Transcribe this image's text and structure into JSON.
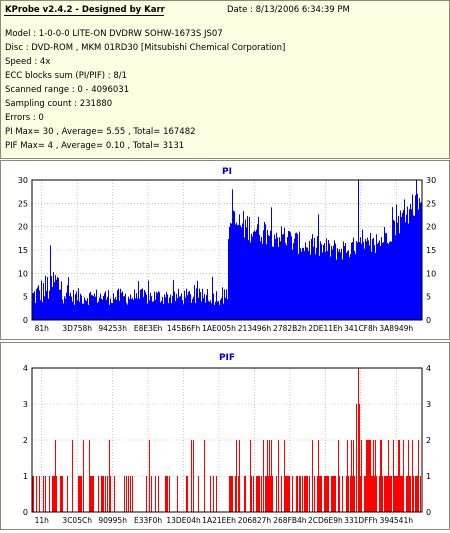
{
  "info": {
    "app_title": "KProbe v2.4.2 - Designed by Karr",
    "date_label": "Date : 8/13/2006 6:34:39 PM",
    "lines": [
      "Model : 1-0-0-0 LITE-ON DVDRW SOHW-1673S JS07",
      "Disc : DVD-ROM , MKM 01RD30   [Mitsubishi Chemical Corporation]",
      "Speed : 4x",
      "ECC blocks sum (PI/PIF) : 8/1",
      "Scanned range : 0 - 4096031",
      "Sampling count : 231880",
      "Errors : 0",
      "PI Max= 30 , Average= 5.55 , Total= 167482",
      "PIF Max= 4 , Average= 0.10 , Total= 3131"
    ]
  },
  "chart_data": [
    {
      "type": "bar",
      "title": "PI",
      "color": "#0000ff",
      "title_color": "#0000cc",
      "ylim": [
        0,
        30
      ],
      "yticks": [
        0,
        5,
        10,
        15,
        20,
        25,
        30
      ],
      "xlim": [
        0,
        1
      ],
      "xticks": [
        "81h",
        "3D758h",
        "94253h",
        "E8E3Eh",
        "145B6Fh",
        "1AE005h",
        "213496h",
        "2782B2h",
        "2DE11Eh",
        "341CF8h",
        "3A8949h"
      ],
      "grid": true,
      "profile": [
        {
          "x": 0.0,
          "base": 5,
          "amp": 4
        },
        {
          "x": 0.04,
          "base": 7,
          "amp": 6
        },
        {
          "x": 0.06,
          "base": 8,
          "amp": 7
        },
        {
          "x": 0.1,
          "base": 5,
          "amp": 3
        },
        {
          "x": 0.5,
          "base": 5,
          "amp": 3
        },
        {
          "x": 0.503,
          "base": 21,
          "amp": 6
        },
        {
          "x": 0.6,
          "base": 19,
          "amp": 5
        },
        {
          "x": 0.7,
          "base": 16,
          "amp": 4
        },
        {
          "x": 0.78,
          "base": 15,
          "amp": 4
        },
        {
          "x": 0.88,
          "base": 16,
          "amp": 4
        },
        {
          "x": 0.95,
          "base": 22,
          "amp": 5
        },
        {
          "x": 1.0,
          "base": 26,
          "amp": 4
        }
      ],
      "peaks": [
        {
          "x": 0.045,
          "v": 16
        },
        {
          "x": 0.514,
          "v": 28
        },
        {
          "x": 0.836,
          "v": 30
        },
        {
          "x": 0.985,
          "v": 30
        }
      ]
    },
    {
      "type": "bar",
      "title": "PIF",
      "color": "#ff0000",
      "title_color": "#0000cc",
      "ylim": [
        0,
        4
      ],
      "yticks": [
        0,
        1,
        2,
        3,
        4
      ],
      "xlim": [
        0,
        1
      ],
      "xticks": [
        "11h",
        "3C05Ch",
        "90995h",
        "E33F0h",
        "13DE04h",
        "1A21EEh",
        "206827h",
        "268FB4h",
        "2CD6E9h",
        "331DFFh",
        "394541h"
      ],
      "grid": true,
      "density": [
        {
          "x": 0.0,
          "p1": 0.35,
          "p2": 0.04
        },
        {
          "x": 0.3,
          "p1": 0.3,
          "p2": 0.03
        },
        {
          "x": 0.5,
          "p1": 0.3,
          "p2": 0.04
        },
        {
          "x": 0.52,
          "p1": 0.5,
          "p2": 0.08
        },
        {
          "x": 0.8,
          "p1": 0.6,
          "p2": 0.12
        },
        {
          "x": 0.85,
          "p1": 0.8,
          "p2": 0.3
        },
        {
          "x": 1.0,
          "p1": 0.7,
          "p2": 0.2
        }
      ],
      "peaks": [
        {
          "x": 0.836,
          "v": 4
        },
        {
          "x": 0.832,
          "v": 3
        },
        {
          "x": 0.839,
          "v": 3
        },
        {
          "x": 0.06,
          "v": 2
        },
        {
          "x": 0.13,
          "v": 2
        },
        {
          "x": 0.3,
          "v": 2
        },
        {
          "x": 0.44,
          "v": 2
        },
        {
          "x": 0.56,
          "v": 2
        }
      ]
    }
  ]
}
